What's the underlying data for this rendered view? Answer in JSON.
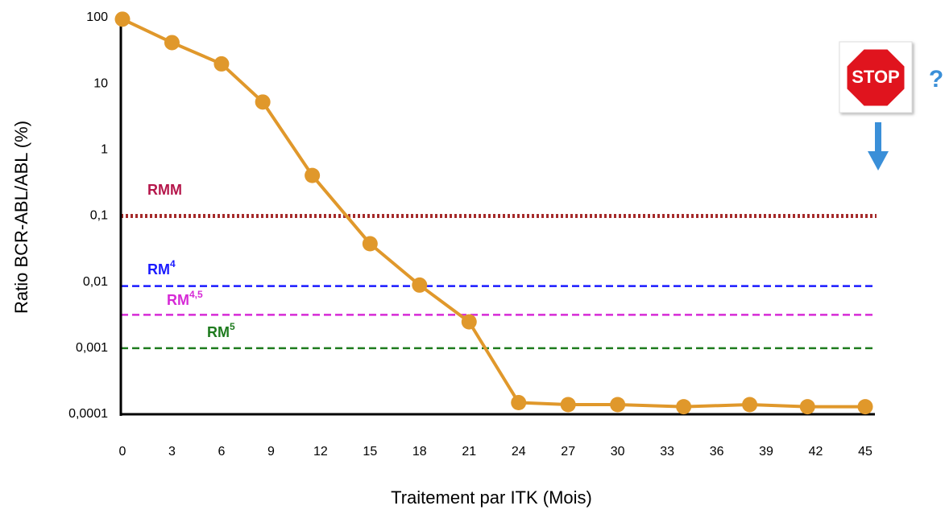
{
  "chart_data": {
    "type": "line",
    "y_label": "Ratio BCR-ABL/ABL (%)",
    "x_label": "Traitement par ITK (Mois)",
    "log_y": true,
    "xlim": [
      0,
      45
    ],
    "xticks": [
      0,
      3,
      6,
      9,
      12,
      15,
      18,
      21,
      24,
      27,
      30,
      33,
      36,
      39,
      42,
      45
    ],
    "ylim": [
      0.0001,
      100
    ],
    "yticks": [
      100,
      10,
      1,
      {
        "value": 0.1,
        "label": "0,1"
      },
      {
        "value": 0.01,
        "label": "0,01"
      },
      {
        "value": 0.001,
        "label": "0,001"
      },
      {
        "value": 0.0001,
        "label": "0,0001"
      }
    ],
    "series": [
      {
        "color": "#e0982b",
        "x": [
          0,
          3,
          6,
          8.5,
          11.5,
          15,
          18,
          21,
          24,
          27,
          30,
          34,
          38,
          41.5,
          45
        ],
        "values": [
          95,
          42,
          20,
          5.3,
          0.41,
          0.038,
          0.009,
          0.0025,
          0.00015,
          0.00014,
          0.00014,
          0.00013,
          0.00014,
          0.00013,
          0.00013
        ]
      }
    ],
    "reference_lines": [
      {
        "name": "RMM",
        "value": 0.1,
        "color": "#a52a2a",
        "label_color": "#b5174b",
        "style": "dotted"
      },
      {
        "name": "RM",
        "sup": "4",
        "value": 0.0087,
        "color": "#1a1aff",
        "label_color": "#1a1aff",
        "style": "dashed"
      },
      {
        "name": "RM",
        "sup": "4,5",
        "value": 0.0032,
        "color": "#d62ad6",
        "label_color": "#d62ad6",
        "style": "dashed"
      },
      {
        "name": "RM",
        "sup": "5",
        "value": 0.001,
        "color": "#1e7b1e",
        "label_color": "#1e7b1e",
        "style": "dashed"
      }
    ],
    "annotations": {
      "stop": "STOP",
      "question": "?"
    }
  }
}
